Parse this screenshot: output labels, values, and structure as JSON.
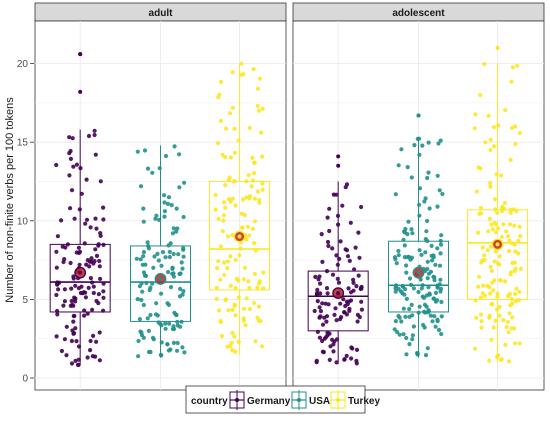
{
  "chart_data": {
    "type": "boxplot",
    "title": "",
    "xlabel": "",
    "ylabel": "Number of non-finite verbs per 100 tokens",
    "ylim": [
      0,
      21.5
    ],
    "yticks": [
      "0",
      "5",
      "10",
      "15",
      "20"
    ],
    "grid": true,
    "legend_position": "bottom",
    "legend_title": "country",
    "colors": {
      "Germany": "#440154",
      "USA": "#21908C",
      "Turkey": "#FDE725",
      "mean": "#C81E1E"
    },
    "series": [
      {
        "name": "Germany"
      },
      {
        "name": "USA"
      },
      {
        "name": "Turkey"
      }
    ],
    "panels": [
      {
        "label": "adult",
        "boxes": [
          {
            "series": "Germany",
            "whisker_low": 0.8,
            "q1": 4.2,
            "median": 6.1,
            "q3": 8.5,
            "whisker_high": 15.8,
            "mean": 6.7,
            "outliers": [
              18.2,
              20.6,
              20.6
            ],
            "n": 140
          },
          {
            "series": "USA",
            "whisker_low": 1.3,
            "q1": 3.6,
            "median": 6.1,
            "q3": 8.4,
            "whisker_high": 14.8,
            "mean": 6.3,
            "outliers": [],
            "n": 130
          },
          {
            "series": "Turkey",
            "whisker_low": 1.5,
            "q1": 5.6,
            "median": 8.2,
            "q3": 12.5,
            "whisker_high": 20.0,
            "mean": 9.0,
            "outliers": [],
            "n": 140
          }
        ]
      },
      {
        "label": "adolescent",
        "boxes": [
          {
            "series": "Germany",
            "whisker_low": 0.9,
            "q1": 3.0,
            "median": 5.2,
            "q3": 6.8,
            "whisker_high": 12.5,
            "mean": 5.4,
            "outliers": [
              13.5,
              14.1
            ],
            "n": 120
          },
          {
            "series": "USA",
            "whisker_low": 1.3,
            "q1": 4.2,
            "median": 5.9,
            "q3": 8.7,
            "whisker_high": 15.3,
            "mean": 6.7,
            "outliers": [
              16.7,
              16.7
            ],
            "n": 160
          },
          {
            "series": "Turkey",
            "whisker_low": 1.0,
            "q1": 5.0,
            "median": 8.6,
            "q3": 10.7,
            "whisker_high": 20.0,
            "mean": 8.5,
            "outliers": [
              21.0,
              21.0
            ],
            "n": 150
          }
        ]
      }
    ]
  }
}
